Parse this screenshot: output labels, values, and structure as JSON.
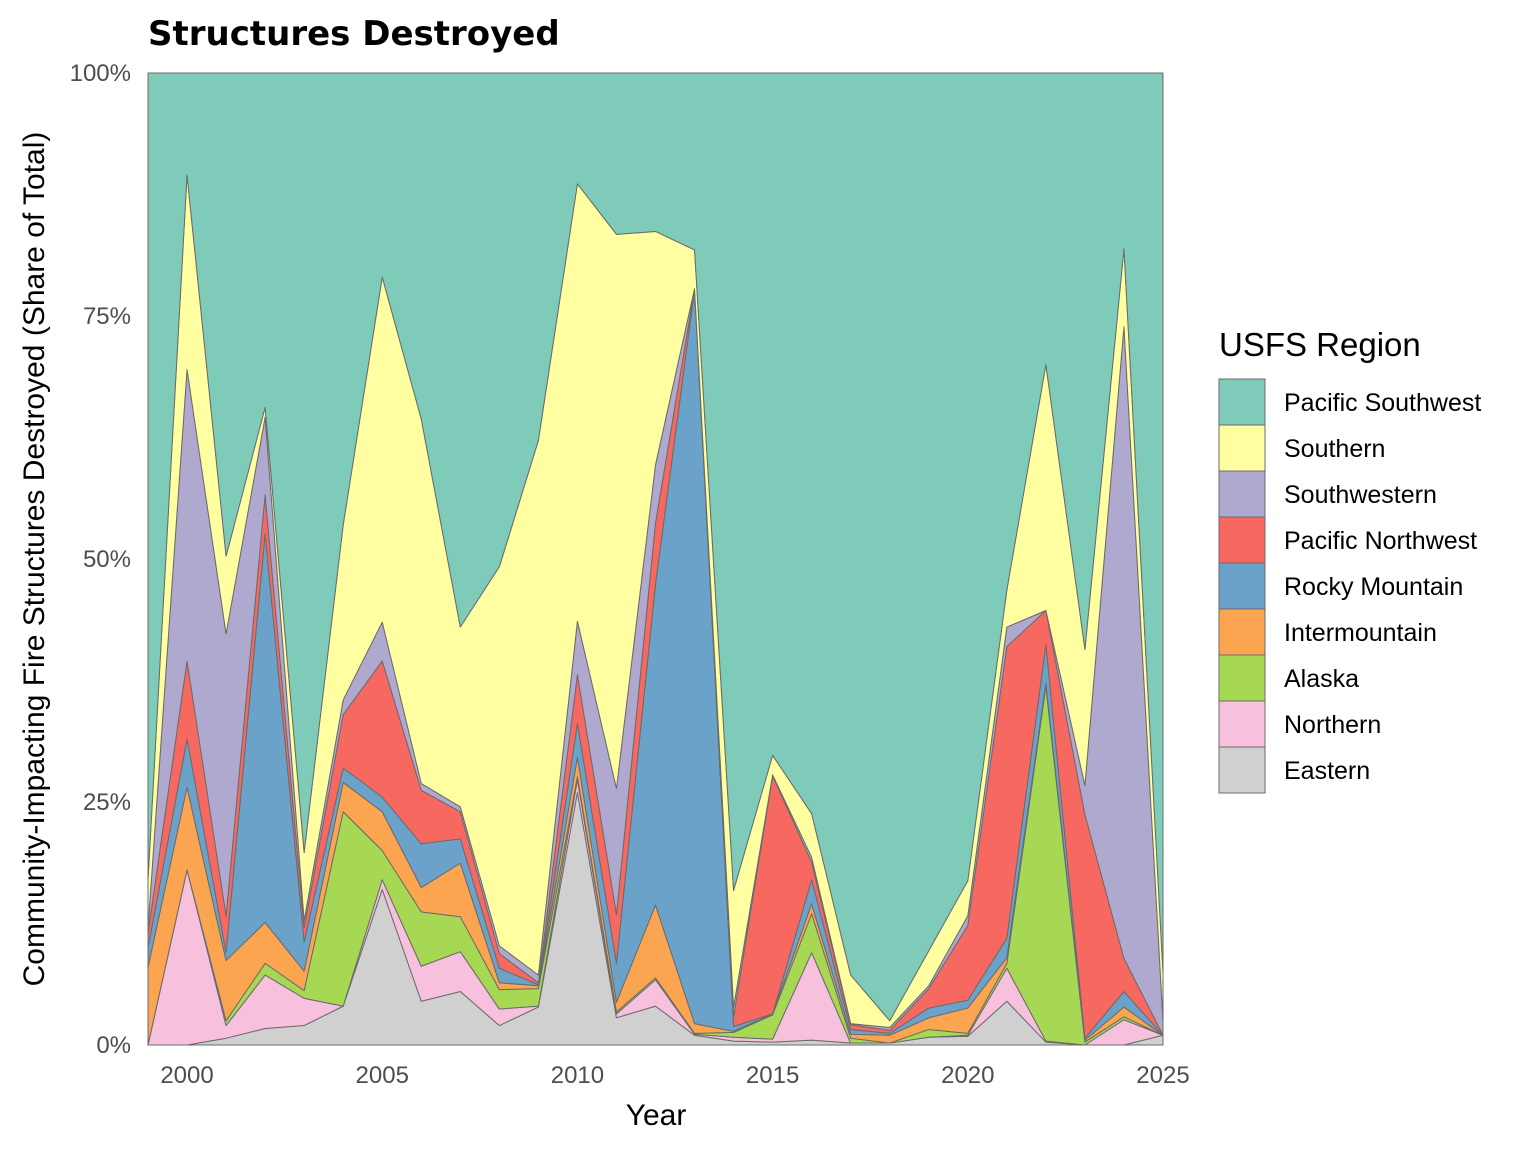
{
  "chart_data": {
    "type": "area",
    "stacked": true,
    "normalized": true,
    "title": "Structures Destroyed",
    "xlabel": "Year",
    "ylabel": "Community-Impacting Fire Structures Destroyed (Share of Total)",
    "xlim": [
      1999,
      2025
    ],
    "ylim": [
      0,
      1
    ],
    "xticks": [
      "2000",
      "2005",
      "2010",
      "2015",
      "2020",
      "2025"
    ],
    "yticks": [
      "0%",
      "25%",
      "50%",
      "75%",
      "100%"
    ],
    "grid": false,
    "legend": {
      "title": "USFS Region",
      "position": "right"
    },
    "x": [
      1999,
      2000,
      2001,
      2002,
      2003,
      2004,
      2005,
      2006,
      2007,
      2008,
      2009,
      2010,
      2011,
      2012,
      2013,
      2014,
      2015,
      2016,
      2017,
      2018,
      2019,
      2020,
      2021,
      2022,
      2023,
      2024,
      2025
    ],
    "series": [
      {
        "name": "Eastern",
        "color": "#d0d0d0",
        "values": [
          0,
          0,
          0.7,
          1.7,
          2.0,
          4.0,
          16.0,
          4.5,
          5.5,
          2.0,
          3.9,
          26.0,
          2.8,
          4.0,
          1.0,
          0.4,
          0.3,
          0.5,
          0.2,
          0.2,
          0.8,
          0.9,
          4.5,
          0.3,
          0.0,
          0.0,
          1.0
        ]
      },
      {
        "name": "Northern",
        "color": "#f7c1de",
        "values": [
          0,
          18.0,
          1.3,
          5.5,
          2.8,
          0,
          1.0,
          3.6,
          4.1,
          1.7,
          0.1,
          1.3,
          0.4,
          2.7,
          0.1,
          0.4,
          0.3,
          9.0,
          0.0,
          0.0,
          0.0,
          0.1,
          3.4,
          0.1,
          0.0,
          2.6,
          0.0
        ]
      },
      {
        "name": "Alaska",
        "color": "#a6d854",
        "values": [
          0,
          0,
          0.5,
          1.2,
          0.8,
          20.0,
          3.0,
          5.6,
          3.6,
          2.0,
          1.8,
          0.3,
          0.2,
          0.2,
          0.1,
          0.5,
          2.5,
          4.0,
          0.5,
          0.0,
          0.8,
          0.2,
          0.5,
          36.5,
          0.3,
          0.3,
          0.0
        ]
      },
      {
        "name": "Intermountain",
        "color": "#fca551",
        "values": [
          8.0,
          8.5,
          6.2,
          4.2,
          2.0,
          3.0,
          4.0,
          2.5,
          5.5,
          0.7,
          0.3,
          2.0,
          1.0,
          7.5,
          1.0,
          0.1,
          0.1,
          1.0,
          0.4,
          0.8,
          1.2,
          2.6,
          0.6,
          0.3,
          0.2,
          1.0,
          0.0
        ]
      },
      {
        "name": "Rocky Mountain",
        "color": "#6ba2c9",
        "values": [
          2.0,
          5.0,
          0.8,
          40.0,
          3.0,
          1.5,
          1.5,
          4.5,
          2.5,
          1.5,
          0.1,
          3.5,
          4.0,
          33.0,
          75.5,
          0.5,
          0.0,
          2.5,
          0.5,
          0.2,
          1.0,
          0.8,
          2.0,
          4.0,
          0.2,
          1.6,
          0.0
        ]
      },
      {
        "name": "Pacific Northwest",
        "color": "#f76860",
        "values": [
          1.5,
          8.0,
          3.8,
          4.0,
          1.5,
          5.5,
          14.0,
          5.5,
          2.8,
          1.5,
          0.2,
          5.0,
          5.0,
          6.3,
          0.1,
          1.0,
          24.5,
          1.8,
          0.5,
          0.3,
          2.0,
          7.7,
          30.0,
          3.5,
          23.0,
          3.4,
          0.0
        ]
      },
      {
        "name": "Southwestern",
        "color": "#b0a9cf",
        "values": [
          0.5,
          30.0,
          29.0,
          8.0,
          0.7,
          1.5,
          4.0,
          0.7,
          0.5,
          0.8,
          0.8,
          5.5,
          13.0,
          6.0,
          0.0,
          1.0,
          0.1,
          0.5,
          0.1,
          0.3,
          0.3,
          1.0,
          2.0,
          0.0,
          3.0,
          65.0,
          1.5
        ]
      },
      {
        "name": "Southern",
        "color": "#ffffa1",
        "values": [
          5.0,
          20.0,
          8.0,
          1.0,
          7.0,
          18.0,
          35.5,
          37.5,
          18.5,
          39.0,
          55.0,
          45.0,
          57.0,
          24.0,
          4.0,
          12.0,
          2.0,
          4.5,
          5.0,
          0.7,
          3.6,
          3.6,
          3.8,
          25.3,
          14.0,
          8.0,
          5.0
        ]
      },
      {
        "name": "Pacific Southwest",
        "color": "#7ecbb9",
        "values": [
          83.0,
          10.5,
          49.7,
          34.4,
          80.2,
          46.5,
          21.0,
          35.6,
          57.0,
          50.8,
          37.8,
          11.4,
          16.6,
          16.3,
          18.2,
          84.1,
          70.2,
          76.2,
          92.8,
          97.5,
          90.3,
          83.1,
          53.2,
          30.0,
          59.3,
          18.1,
          92.5
        ]
      }
    ]
  }
}
